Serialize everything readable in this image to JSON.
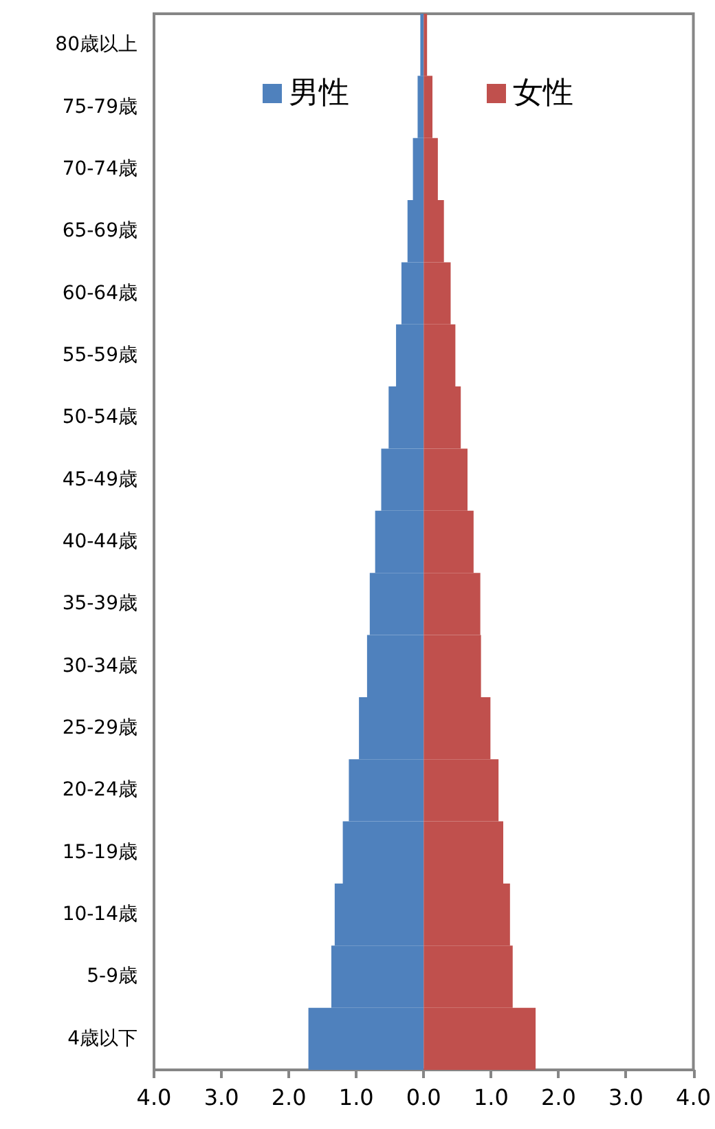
{
  "chart_data": {
    "type": "bar",
    "orientation": "horizontal",
    "stacked": true,
    "categories": [
      "80歳以上",
      "75-79歳",
      "70-74歳",
      "65-69歳",
      "60-64歳",
      "55-59歳",
      "50-54歳",
      "45-49歳",
      "40-44歳",
      "35-39歳",
      "30-34歳",
      "25-29歳",
      "20-24歳",
      "15-19歳",
      "10-14歳",
      "5-9歳",
      "4歳以下"
    ],
    "series": [
      {
        "name": "男性",
        "color": "#4f81bd",
        "values": [
          -0.05,
          -0.09,
          -0.16,
          -0.24,
          -0.33,
          -0.41,
          -0.52,
          -0.63,
          -0.72,
          -0.8,
          -0.84,
          -0.96,
          -1.11,
          -1.2,
          -1.32,
          -1.37,
          -1.71
        ]
      },
      {
        "name": "女性",
        "color": "#c0504d",
        "values": [
          0.05,
          0.13,
          0.21,
          0.3,
          0.4,
          0.47,
          0.55,
          0.65,
          0.74,
          0.84,
          0.85,
          0.99,
          1.11,
          1.18,
          1.28,
          1.32,
          1.66
        ]
      }
    ],
    "xlim": [
      -4,
      4
    ],
    "xticks": [
      {
        "value": -4,
        "label": "4.0"
      },
      {
        "value": -3,
        "label": "3.0"
      },
      {
        "value": -2,
        "label": "2.0"
      },
      {
        "value": -1,
        "label": "1.0"
      },
      {
        "value": 0,
        "label": "0.0"
      },
      {
        "value": 1,
        "label": "1.0"
      },
      {
        "value": 2,
        "label": "2.0"
      },
      {
        "value": 3,
        "label": "3.0"
      },
      {
        "value": 4,
        "label": "4.0"
      }
    ],
    "grid": false,
    "legend": "top"
  }
}
